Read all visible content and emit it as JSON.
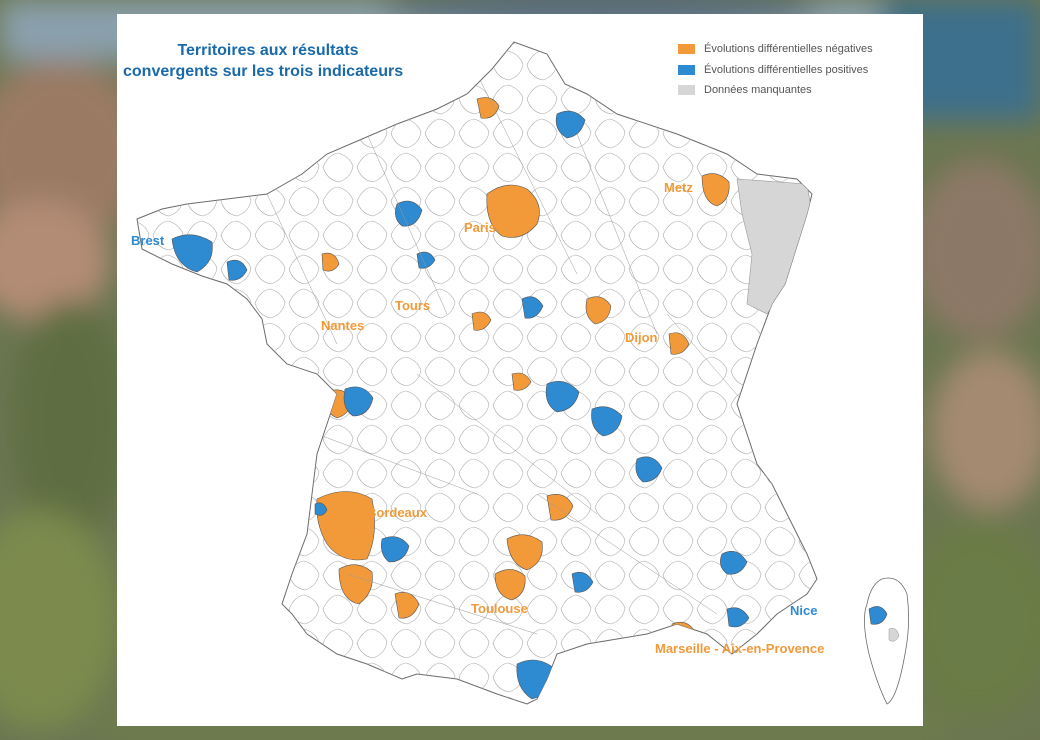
{
  "title": {
    "line1": "Territoires aux résultats",
    "line2": "convergents sur les trois indicateurs"
  },
  "legend": [
    {
      "label": "Évolutions différentielles négatives",
      "color": "#f29a3a"
    },
    {
      "label": "Évolutions différentielles positives",
      "color": "#2e8ad1"
    },
    {
      "label": "Données manquantes",
      "color": "#d6d6d6"
    }
  ],
  "cities": {
    "brest": {
      "label": "Brest",
      "category": "positive"
    },
    "paris": {
      "label": "Paris",
      "category": "negative"
    },
    "metz": {
      "label": "Metz",
      "category": "negative"
    },
    "tours": {
      "label": "Tours",
      "category": "negative"
    },
    "nantes": {
      "label": "Nantes",
      "category": "negative"
    },
    "dijon": {
      "label": "Dijon",
      "category": "negative"
    },
    "bordeaux": {
      "label": "Bordeaux",
      "category": "negative"
    },
    "toulouse": {
      "label": "Toulouse",
      "category": "negative"
    },
    "nice": {
      "label": "Nice",
      "category": "positive"
    },
    "marseille": {
      "label": "Marseille - Aix-en-Provence",
      "category": "negative"
    }
  },
  "colors": {
    "negative": "#f29a3a",
    "positive": "#2e8ad1",
    "missing": "#d6d6d6",
    "title": "#1a6aa9",
    "border": "#8a8a8a"
  }
}
